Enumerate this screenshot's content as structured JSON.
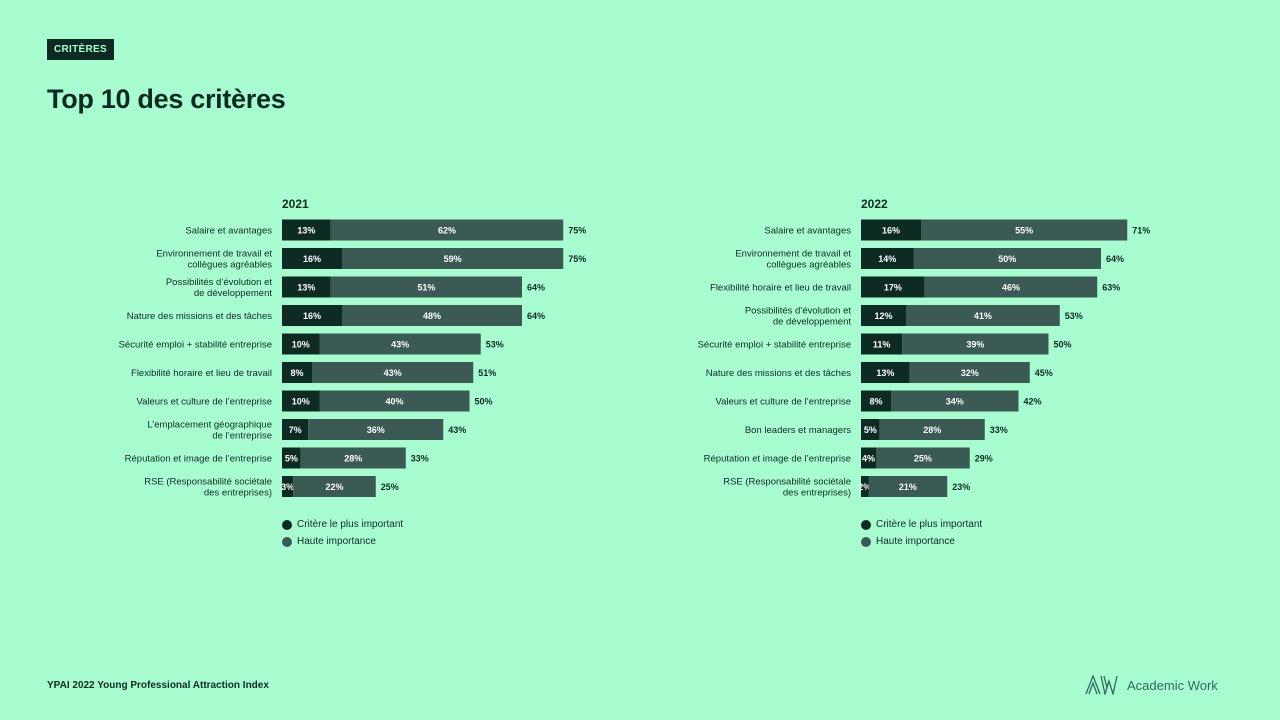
{
  "header": {
    "badge": "CRITÈRES",
    "title": "Top 10 des critères"
  },
  "legend": {
    "top_label": "Critère le plus important",
    "high_label": "Haute importance"
  },
  "footer": {
    "text": "YPAI 2022 Young Professional Attraction Index",
    "logo_text": "Academic Work",
    "logo_icon": "aw-logo-icon"
  },
  "colors": {
    "background": "#a8fdd0",
    "top": "#0d2b23",
    "high": "#3a5a53",
    "bar_text": "#ffffff",
    "text": "#0d2b23"
  },
  "chart_data": [
    {
      "type": "bar",
      "orientation": "horizontal",
      "stacked": true,
      "title": "2021",
      "categories": [
        [
          "Salaire et avantages"
        ],
        [
          "Environnement de travail et",
          "collègues agréables"
        ],
        [
          "Possibilités d’évolution et",
          "de développement"
        ],
        [
          "Nature des missions et des tâches"
        ],
        [
          "Sécurité emploi + stabilité entreprise"
        ],
        [
          "Flexibilité horaire et lieu de travail"
        ],
        [
          "Valeurs et culture de l’entreprise"
        ],
        [
          "L’emplacement géographique",
          "de l’entreprise"
        ],
        [
          "Réputation et image de l’entreprise"
        ],
        [
          "RSE (Responsabilité sociétale",
          "des entreprises)"
        ]
      ],
      "series": [
        {
          "name": "Critère le plus important",
          "values": [
            13,
            16,
            13,
            16,
            10,
            8,
            10,
            7,
            5,
            3
          ]
        },
        {
          "name": "Haute importance",
          "values": [
            62,
            59,
            51,
            48,
            43,
            43,
            40,
            36,
            28,
            22
          ]
        }
      ],
      "totals": [
        75,
        75,
        64,
        64,
        53,
        51,
        50,
        43,
        33,
        25
      ],
      "unit": "%",
      "xlim": [
        0,
        100
      ],
      "legend_position": "bottom-left"
    },
    {
      "type": "bar",
      "orientation": "horizontal",
      "stacked": true,
      "title": "2022",
      "categories": [
        [
          "Salaire et avantages"
        ],
        [
          "Environnement de travail et",
          "collègues agréables"
        ],
        [
          "Flexibilité horaire et lieu de travail"
        ],
        [
          "Possibilités d’évolution et",
          "de développement"
        ],
        [
          "Sécurité emploi + stabilité entreprise"
        ],
        [
          "Nature des missions et des tâches"
        ],
        [
          "Valeurs et culture de l’entreprise"
        ],
        [
          "Bon leaders et managers"
        ],
        [
          "Réputation et image de l’entreprise"
        ],
        [
          "RSE (Responsabilité sociétale",
          "des entreprises)"
        ]
      ],
      "series": [
        {
          "name": "Critère le plus important",
          "values": [
            16,
            14,
            17,
            12,
            11,
            13,
            8,
            5,
            4,
            2
          ]
        },
        {
          "name": "Haute importance",
          "values": [
            55,
            50,
            46,
            41,
            39,
            32,
            34,
            28,
            25,
            21
          ]
        }
      ],
      "totals": [
        71,
        64,
        63,
        53,
        50,
        45,
        42,
        33,
        29,
        23
      ],
      "unit": "%",
      "xlim": [
        0,
        100
      ],
      "legend_position": "bottom-left"
    }
  ]
}
